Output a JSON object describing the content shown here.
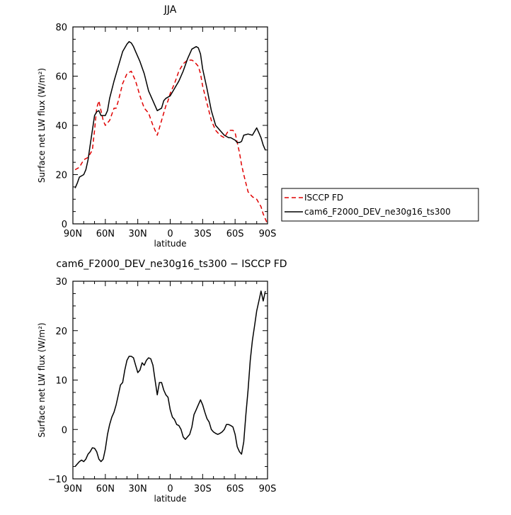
{
  "chart_data": [
    {
      "type": "line",
      "title": "JJA",
      "xlabel": "latitude",
      "ylabel": "Surface net LW flux (W/m²)",
      "xlim": [
        90,
        -90
      ],
      "ylim": [
        0,
        80
      ],
      "x_tick_values": [
        90,
        60,
        30,
        0,
        -30,
        -60,
        -90
      ],
      "x_tick_labels": [
        "90N",
        "60N",
        "30N",
        "0",
        "30S",
        "60S",
        "90S"
      ],
      "y_tick_values": [
        0,
        20,
        40,
        60,
        80
      ],
      "y_tick_labels": [
        "0",
        "20",
        "40",
        "60",
        "80"
      ],
      "legend": "right",
      "series": [
        {
          "name": "ISCCP FD",
          "color": "#e00000",
          "dash": true,
          "x": [
            88,
            84,
            80,
            76,
            72,
            70,
            68,
            66,
            64,
            62,
            60,
            56,
            52,
            50,
            48,
            44,
            40,
            36,
            32,
            30,
            28,
            24,
            20,
            16,
            12,
            8,
            4,
            2,
            0,
            -4,
            -8,
            -12,
            -16,
            -20,
            -22,
            -24,
            -26,
            -28,
            -30,
            -34,
            -38,
            -42,
            -46,
            -50,
            -54,
            -58,
            -60,
            -62,
            -64,
            -66,
            -68,
            -72,
            -76,
            -80,
            -84,
            -86,
            -88,
            -90
          ],
          "y": [
            22,
            23,
            26,
            27,
            30,
            38,
            47,
            50,
            46,
            42,
            40,
            42,
            47,
            47,
            50,
            57,
            61,
            62,
            58,
            55,
            52,
            47,
            45,
            40,
            36,
            42,
            48,
            50,
            53,
            57,
            62,
            65,
            66.5,
            66.5,
            66,
            65,
            64,
            61,
            56,
            49,
            42,
            38,
            36,
            35,
            38,
            38,
            37,
            33,
            29,
            24,
            20,
            13,
            11,
            10,
            7,
            4,
            2,
            0
          ]
        },
        {
          "name": "cam6_F2000_DEV_ne30g16_ts300",
          "color": "#000000",
          "dash": false,
          "x": [
            88,
            86,
            84,
            80,
            78,
            76,
            74,
            72,
            70,
            68,
            66,
            64,
            60,
            58,
            56,
            52,
            48,
            44,
            40,
            38,
            36,
            34,
            32,
            28,
            24,
            20,
            16,
            12,
            8,
            6,
            4,
            0,
            -4,
            -8,
            -12,
            -16,
            -20,
            -24,
            -26,
            -28,
            -30,
            -34,
            -38,
            -42,
            -46,
            -50,
            -54,
            -56,
            -58,
            -60,
            -62,
            -64,
            -66,
            -68,
            -72,
            -76,
            -80,
            -82,
            -84,
            -86,
            -88
          ],
          "y": [
            14.5,
            16.5,
            19,
            20,
            22,
            26,
            32,
            38,
            44,
            45.5,
            46,
            44,
            44,
            46,
            51,
            58,
            64,
            70,
            73,
            74,
            73.5,
            72,
            70,
            66,
            61,
            54,
            50,
            46,
            47,
            50,
            51,
            52,
            55,
            58,
            62,
            67,
            71,
            72,
            71.5,
            69,
            63,
            55,
            46,
            40,
            38,
            36,
            35,
            35,
            34.5,
            34,
            33,
            33,
            33.5,
            36,
            36.5,
            36,
            39,
            37,
            35,
            32,
            30
          ]
        }
      ]
    },
    {
      "type": "line",
      "title": "cam6_F2000_DEV_ne30g16_ts300 − ISCCP FD",
      "xlabel": "latitude",
      "ylabel": "Surface net LW flux (W/m²)",
      "xlim": [
        90,
        -90
      ],
      "ylim": [
        -10,
        30
      ],
      "x_tick_values": [
        90,
        60,
        30,
        0,
        -30,
        -60,
        -90
      ],
      "x_tick_labels": [
        "90N",
        "60N",
        "30N",
        "0",
        "30S",
        "60S",
        "90S"
      ],
      "y_tick_values": [
        -10,
        0,
        10,
        20,
        30
      ],
      "y_tick_labels": [
        "−10",
        "0",
        "10",
        "20",
        "30"
      ],
      "series": [
        {
          "name": "",
          "color": "#000000",
          "dash": false,
          "x": [
            88,
            86,
            84,
            82,
            80,
            78,
            76,
            74,
            72,
            70,
            68,
            66,
            64,
            62,
            60,
            58,
            56,
            54,
            52,
            50,
            48,
            46,
            44,
            42,
            40,
            38,
            36,
            34,
            32,
            30,
            28,
            26,
            24,
            22,
            20,
            18,
            16,
            14,
            12,
            10,
            8,
            6,
            4,
            2,
            0,
            -2,
            -4,
            -6,
            -8,
            -10,
            -12,
            -14,
            -16,
            -18,
            -20,
            -22,
            -24,
            -26,
            -28,
            -30,
            -32,
            -34,
            -36,
            -38,
            -40,
            -42,
            -44,
            -46,
            -48,
            -50,
            -52,
            -54,
            -56,
            -58,
            -60,
            -62,
            -64,
            -66,
            -68,
            -70,
            -72,
            -74,
            -76,
            -78,
            -80,
            -82,
            -84,
            -86,
            -88
          ],
          "y": [
            -7.5,
            -7,
            -6.5,
            -6.2,
            -6.5,
            -6,
            -5,
            -4.5,
            -3.7,
            -3.8,
            -4.5,
            -6,
            -6.5,
            -6,
            -4,
            -1,
            1,
            2.5,
            3.5,
            5,
            7,
            9,
            9.5,
            12,
            14,
            14.8,
            14.8,
            14.5,
            13,
            11.5,
            12,
            13.5,
            13,
            14,
            14.5,
            14.3,
            13,
            10,
            7,
            9.5,
            9.5,
            8,
            7,
            6.5,
            4,
            2.5,
            2,
            1,
            0.8,
            0,
            -1.5,
            -2,
            -1.5,
            -1,
            0.5,
            3,
            4,
            5,
            6,
            5,
            3.5,
            2.2,
            1.5,
            0,
            -0.5,
            -0.8,
            -1,
            -0.8,
            -0.5,
            0,
            1,
            1,
            0.8,
            0.5,
            -1,
            -3.5,
            -4.5,
            -5,
            -2.5,
            3,
            8,
            14,
            18,
            21,
            24,
            26,
            28,
            26,
            28
          ]
        }
      ]
    }
  ]
}
